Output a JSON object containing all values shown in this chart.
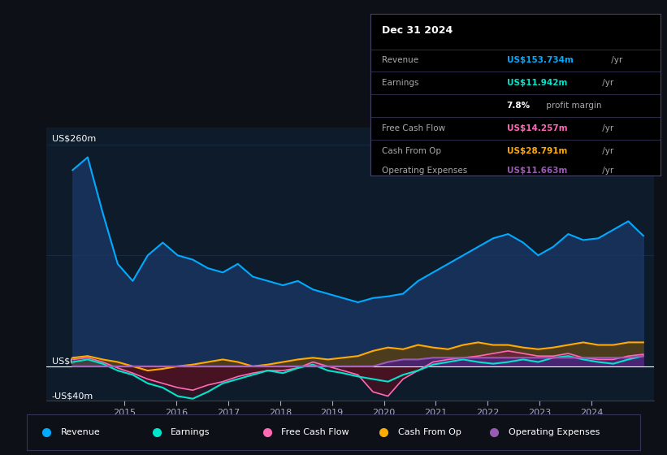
{
  "bg_color": "#0d1117",
  "plot_bg_color": "#0d1b2a",
  "grid_color": "#1e3050",
  "zero_line_color": "#ffffff",
  "y_label_top": "US$260m",
  "y_label_zero": "US$0",
  "y_label_bottom": "-US$40m",
  "ylim": [
    -40,
    280
  ],
  "xlim_start": 2013.5,
  "xlim_end": 2025.2,
  "x_ticks": [
    2015,
    2016,
    2017,
    2018,
    2019,
    2020,
    2021,
    2022,
    2023,
    2024
  ],
  "revenue_color": "#00aaff",
  "revenue_fill": "#1a3a6b",
  "earnings_color": "#00e5cc",
  "earnings_fill_pos": "#2a5a50",
  "earnings_fill_neg": "#5a1020",
  "fcf_color": "#ff69b4",
  "fcf_fill_pos": "#6b2040",
  "fcf_fill_neg": "#5a1020",
  "cashfromop_color": "#ffaa00",
  "cashfromop_fill": "#5a4010",
  "opex_color": "#9b59b6",
  "opex_fill": "#4a2080",
  "legend_bg": "#0d1117",
  "legend_border": "#333355",
  "tooltip_bg": "#000000",
  "tooltip_border": "#333355",
  "revenue": [
    230,
    245,
    180,
    120,
    100,
    130,
    145,
    130,
    125,
    115,
    110,
    120,
    105,
    100,
    95,
    100,
    90,
    85,
    80,
    75,
    80,
    82,
    85,
    100,
    110,
    120,
    130,
    140,
    150,
    155,
    145,
    130,
    140,
    155,
    148,
    150,
    160,
    170,
    153
  ],
  "earnings": [
    5,
    8,
    3,
    -5,
    -10,
    -20,
    -25,
    -35,
    -38,
    -30,
    -20,
    -15,
    -10,
    -5,
    -8,
    -2,
    2,
    -5,
    -8,
    -12,
    -15,
    -18,
    -10,
    -5,
    2,
    5,
    8,
    5,
    3,
    5,
    8,
    5,
    10,
    12,
    8,
    5,
    3,
    8,
    12
  ],
  "fcf": [
    8,
    10,
    5,
    -2,
    -8,
    -15,
    -20,
    -25,
    -28,
    -22,
    -18,
    -12,
    -8,
    -5,
    -5,
    -2,
    5,
    0,
    -5,
    -10,
    -30,
    -35,
    -15,
    -5,
    5,
    8,
    10,
    12,
    15,
    18,
    15,
    12,
    12,
    15,
    10,
    8,
    8,
    12,
    14
  ],
  "cashfromop": [
    10,
    12,
    8,
    5,
    0,
    -5,
    -3,
    0,
    2,
    5,
    8,
    5,
    0,
    2,
    5,
    8,
    10,
    8,
    10,
    12,
    18,
    22,
    20,
    25,
    22,
    20,
    25,
    28,
    25,
    25,
    22,
    20,
    22,
    25,
    28,
    25,
    25,
    28,
    28
  ],
  "opex": [
    0,
    0,
    0,
    0,
    0,
    0,
    0,
    0,
    0,
    0,
    0,
    0,
    0,
    0,
    0,
    0,
    0,
    0,
    0,
    0,
    0,
    5,
    8,
    8,
    10,
    10,
    10,
    10,
    10,
    10,
    10,
    10,
    10,
    10,
    10,
    10,
    10,
    10,
    12
  ],
  "time_points": 39,
  "time_start": 2014.0,
  "time_end": 2025.0,
  "tooltip_rows": [
    {
      "label": "Revenue",
      "value": "US$153.734m",
      "suffix": " /yr",
      "color": "#00aaff"
    },
    {
      "label": "Earnings",
      "value": "US$11.942m",
      "suffix": " /yr",
      "color": "#00e5cc"
    },
    {
      "label": "",
      "value": "7.8%",
      "suffix": " profit margin",
      "color": "#ffffff"
    },
    {
      "label": "Free Cash Flow",
      "value": "US$14.257m",
      "suffix": " /yr",
      "color": "#ff69b4"
    },
    {
      "label": "Cash From Op",
      "value": "US$28.791m",
      "suffix": " /yr",
      "color": "#ffaa00"
    },
    {
      "label": "Operating Expenses",
      "value": "US$11.663m",
      "suffix": " /yr",
      "color": "#9b59b6"
    }
  ],
  "legend_items": [
    {
      "label": "Revenue",
      "color": "#00aaff"
    },
    {
      "label": "Earnings",
      "color": "#00e5cc"
    },
    {
      "label": "Free Cash Flow",
      "color": "#ff69b4"
    },
    {
      "label": "Cash From Op",
      "color": "#ffaa00"
    },
    {
      "label": "Operating Expenses",
      "color": "#9b59b6"
    }
  ]
}
